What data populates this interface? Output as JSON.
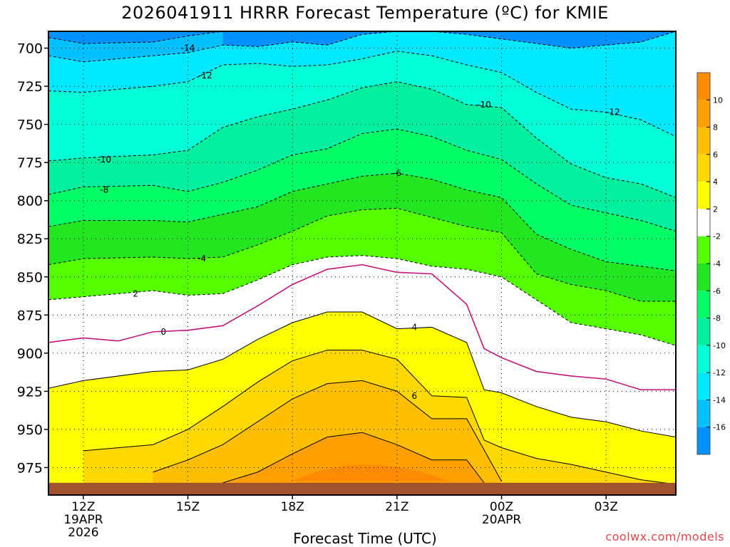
{
  "chart_data": {
    "type": "contour",
    "title": "2026041911 HRRR Forecast Temperature (ºC) for KMIE",
    "xlabel": "Forecast Time (UTC)",
    "ylabel": "",
    "credit": "coolwx.com/models",
    "x_ticks": [
      {
        "t": 0,
        "lines": [
          "12Z",
          "19APR",
          "2026"
        ]
      },
      {
        "t": 3,
        "lines": [
          "15Z"
        ]
      },
      {
        "t": 6,
        "lines": [
          "18Z"
        ]
      },
      {
        "t": 9,
        "lines": [
          "21Z"
        ]
      },
      {
        "t": 12,
        "lines": [
          "00Z",
          "20APR"
        ]
      },
      {
        "t": 15,
        "lines": [
          "03Z"
        ]
      }
    ],
    "x_range_hours": [
      -1,
      17
    ],
    "y_ticks": [
      700,
      725,
      750,
      775,
      800,
      825,
      850,
      875,
      900,
      925,
      950,
      975
    ],
    "y_range_hpa": [
      689,
      993
    ],
    "colorbar": {
      "ticks": [
        10,
        8,
        6,
        4,
        2,
        -2,
        -4,
        -6,
        -8,
        -10,
        -12,
        -14,
        -16
      ],
      "bands": [
        {
          "lo": 10,
          "hi": 12,
          "color": "#ff8c00"
        },
        {
          "lo": 8,
          "hi": 10,
          "color": "#ffa000"
        },
        {
          "lo": 6,
          "hi": 8,
          "color": "#ffbf00"
        },
        {
          "lo": 4,
          "hi": 6,
          "color": "#ffd800"
        },
        {
          "lo": 2,
          "hi": 4,
          "color": "#ffff00"
        },
        {
          "lo": -2,
          "hi": 2,
          "color": "#ffffff"
        },
        {
          "lo": -4,
          "hi": -2,
          "color": "#55ff00"
        },
        {
          "lo": -6,
          "hi": -4,
          "color": "#22e622"
        },
        {
          "lo": -8,
          "hi": -6,
          "color": "#00ff66"
        },
        {
          "lo": -10,
          "hi": -8,
          "color": "#00f0a0"
        },
        {
          "lo": -12,
          "hi": -10,
          "color": "#00ffd5"
        },
        {
          "lo": -14,
          "hi": -12,
          "color": "#00e8ff"
        },
        {
          "lo": -16,
          "hi": -14,
          "color": "#00c0ff"
        },
        {
          "lo": -18,
          "hi": -16,
          "color": "#0090ff"
        }
      ]
    },
    "ground": {
      "color": "#a0522d",
      "p_top": 985
    },
    "contours": [
      {
        "level": -16,
        "label": "",
        "points": [
          [
            -1,
            693
          ],
          [
            0,
            697
          ],
          [
            2,
            696
          ],
          [
            3,
            692
          ],
          [
            4,
            689
          ]
        ]
      },
      {
        "level": -14,
        "label": "-14",
        "points": [
          [
            -1,
            705
          ],
          [
            0,
            709
          ],
          [
            2,
            705
          ],
          [
            3,
            703
          ],
          [
            4,
            698
          ],
          [
            5,
            699
          ],
          [
            6,
            696
          ],
          [
            7,
            698
          ],
          [
            8,
            691
          ],
          [
            9,
            689
          ],
          [
            10,
            689
          ],
          [
            11,
            691
          ],
          [
            12,
            694
          ],
          [
            13,
            697
          ],
          [
            14,
            700
          ],
          [
            15,
            698
          ],
          [
            16,
            696
          ],
          [
            17,
            689
          ]
        ]
      },
      {
        "level": -12,
        "label": "-12",
        "points": [
          [
            -1,
            728
          ],
          [
            0,
            729
          ],
          [
            2,
            725
          ],
          [
            3,
            722
          ],
          [
            4,
            711
          ],
          [
            5,
            710
          ],
          [
            6,
            712
          ],
          [
            7,
            711
          ],
          [
            8,
            707
          ],
          [
            9,
            702
          ],
          [
            10,
            705
          ],
          [
            11,
            711
          ],
          [
            12,
            716
          ],
          [
            13,
            729
          ],
          [
            14,
            740
          ],
          [
            15,
            742
          ],
          [
            16,
            747
          ],
          [
            17,
            758
          ]
        ]
      },
      {
        "level": -10,
        "label": "-10",
        "points": [
          [
            -1,
            774
          ],
          [
            0,
            772
          ],
          [
            2,
            770
          ],
          [
            3,
            767
          ],
          [
            4,
            752
          ],
          [
            5,
            745
          ],
          [
            6,
            740
          ],
          [
            7,
            734
          ],
          [
            8,
            726
          ],
          [
            9,
            722
          ],
          [
            10,
            727
          ],
          [
            11,
            737
          ],
          [
            12,
            739
          ],
          [
            13,
            759
          ],
          [
            14,
            776
          ],
          [
            15,
            785
          ],
          [
            16,
            789
          ],
          [
            17,
            798
          ]
        ]
      },
      {
        "level": -8,
        "label": "-8",
        "points": [
          [
            -1,
            796
          ],
          [
            0,
            791
          ],
          [
            2,
            790
          ],
          [
            3,
            794
          ],
          [
            4,
            788
          ],
          [
            5,
            780
          ],
          [
            6,
            770
          ],
          [
            7,
            766
          ],
          [
            8,
            756
          ],
          [
            9,
            753
          ],
          [
            10,
            758
          ],
          [
            11,
            767
          ],
          [
            12,
            773
          ],
          [
            13,
            789
          ],
          [
            14,
            803
          ],
          [
            15,
            808
          ],
          [
            16,
            813
          ],
          [
            17,
            820
          ]
        ]
      },
      {
        "level": -6,
        "label": "-6",
        "points": [
          [
            -1,
            817
          ],
          [
            0,
            813
          ],
          [
            2,
            813
          ],
          [
            3,
            814
          ],
          [
            4,
            809
          ],
          [
            5,
            804
          ],
          [
            6,
            794
          ],
          [
            7,
            789
          ],
          [
            8,
            784
          ],
          [
            9,
            782
          ],
          [
            10,
            786
          ],
          [
            11,
            793
          ],
          [
            12,
            798
          ],
          [
            13,
            822
          ],
          [
            14,
            832
          ],
          [
            15,
            840
          ],
          [
            16,
            843
          ],
          [
            17,
            846
          ]
        ]
      },
      {
        "level": -4,
        "label": "-4",
        "points": [
          [
            -1,
            842
          ],
          [
            0,
            838
          ],
          [
            2,
            837
          ],
          [
            3,
            838
          ],
          [
            4,
            837
          ],
          [
            5,
            829
          ],
          [
            6,
            820
          ],
          [
            7,
            810
          ],
          [
            8,
            806
          ],
          [
            9,
            805
          ],
          [
            10,
            811
          ],
          [
            11,
            817
          ],
          [
            12,
            821
          ],
          [
            13,
            848
          ],
          [
            14,
            855
          ],
          [
            15,
            859
          ],
          [
            16,
            866
          ],
          [
            17,
            866
          ]
        ]
      },
      {
        "level": -2,
        "label": "",
        "points": [
          [
            -1,
            865
          ],
          [
            0,
            863
          ],
          [
            2,
            859
          ],
          [
            3,
            862
          ],
          [
            4,
            861
          ],
          [
            5,
            852
          ],
          [
            6,
            842
          ],
          [
            7,
            837
          ],
          [
            8,
            836
          ],
          [
            9,
            838
          ],
          [
            10,
            843
          ],
          [
            11,
            845
          ],
          [
            12,
            850
          ],
          [
            13,
            865
          ],
          [
            14,
            880
          ],
          [
            15,
            884
          ],
          [
            16,
            888
          ],
          [
            17,
            895
          ]
        ]
      },
      {
        "level": 2,
        "label": "2",
        "points": []
      },
      {
        "level": 0,
        "label": "0",
        "points": [
          [
            -1,
            893
          ],
          [
            0,
            890
          ],
          [
            1,
            892
          ],
          [
            2,
            886
          ],
          [
            3,
            885
          ],
          [
            4,
            882
          ],
          [
            5,
            869
          ],
          [
            6,
            855
          ],
          [
            7,
            845
          ],
          [
            8,
            842
          ],
          [
            9,
            847
          ],
          [
            10,
            848
          ],
          [
            11,
            868
          ],
          [
            11.5,
            897
          ],
          [
            12,
            903
          ],
          [
            13,
            912
          ],
          [
            14,
            915
          ],
          [
            15,
            917
          ],
          [
            16,
            924
          ],
          [
            17,
            924
          ]
        ]
      },
      {
        "level": 4,
        "label": "4",
        "points": [
          [
            -1,
            923
          ],
          [
            0,
            918
          ],
          [
            2,
            912
          ],
          [
            3,
            911
          ],
          [
            4,
            904
          ],
          [
            5,
            891
          ],
          [
            6,
            880
          ],
          [
            7,
            873
          ],
          [
            8,
            873
          ],
          [
            9,
            884
          ],
          [
            10,
            883
          ],
          [
            11,
            893
          ],
          [
            11.5,
            924
          ],
          [
            12,
            926
          ],
          [
            13,
            935
          ],
          [
            14,
            942
          ],
          [
            15,
            945
          ],
          [
            16,
            951
          ],
          [
            17,
            955
          ]
        ]
      },
      {
        "level": 6,
        "label": "6",
        "points": [
          [
            0,
            964
          ],
          [
            1,
            962
          ],
          [
            2,
            960
          ],
          [
            3,
            950
          ],
          [
            4,
            935
          ],
          [
            5,
            919
          ],
          [
            6,
            905
          ],
          [
            7,
            898
          ],
          [
            8,
            898
          ],
          [
            9,
            904
          ],
          [
            10,
            928
          ],
          [
            11,
            929
          ],
          [
            11.5,
            957
          ],
          [
            12,
            962
          ],
          [
            13,
            969
          ],
          [
            14,
            973
          ],
          [
            15,
            978
          ],
          [
            16,
            983
          ],
          [
            17,
            986
          ]
        ]
      },
      {
        "level": 8,
        "label": "",
        "points": [
          [
            2,
            978
          ],
          [
            3,
            970
          ],
          [
            4,
            960
          ],
          [
            5,
            945
          ],
          [
            6,
            930
          ],
          [
            7,
            920
          ],
          [
            8,
            918
          ],
          [
            9,
            925
          ],
          [
            10,
            943
          ],
          [
            11,
            943
          ],
          [
            12,
            984
          ]
        ]
      },
      {
        "level": 10,
        "label": "",
        "points": [
          [
            4,
            985
          ],
          [
            5,
            978
          ],
          [
            6,
            966
          ],
          [
            7,
            955
          ],
          [
            8,
            952
          ],
          [
            9,
            960
          ],
          [
            10,
            970
          ],
          [
            11,
            970
          ],
          [
            11.5,
            985
          ]
        ]
      }
    ]
  }
}
